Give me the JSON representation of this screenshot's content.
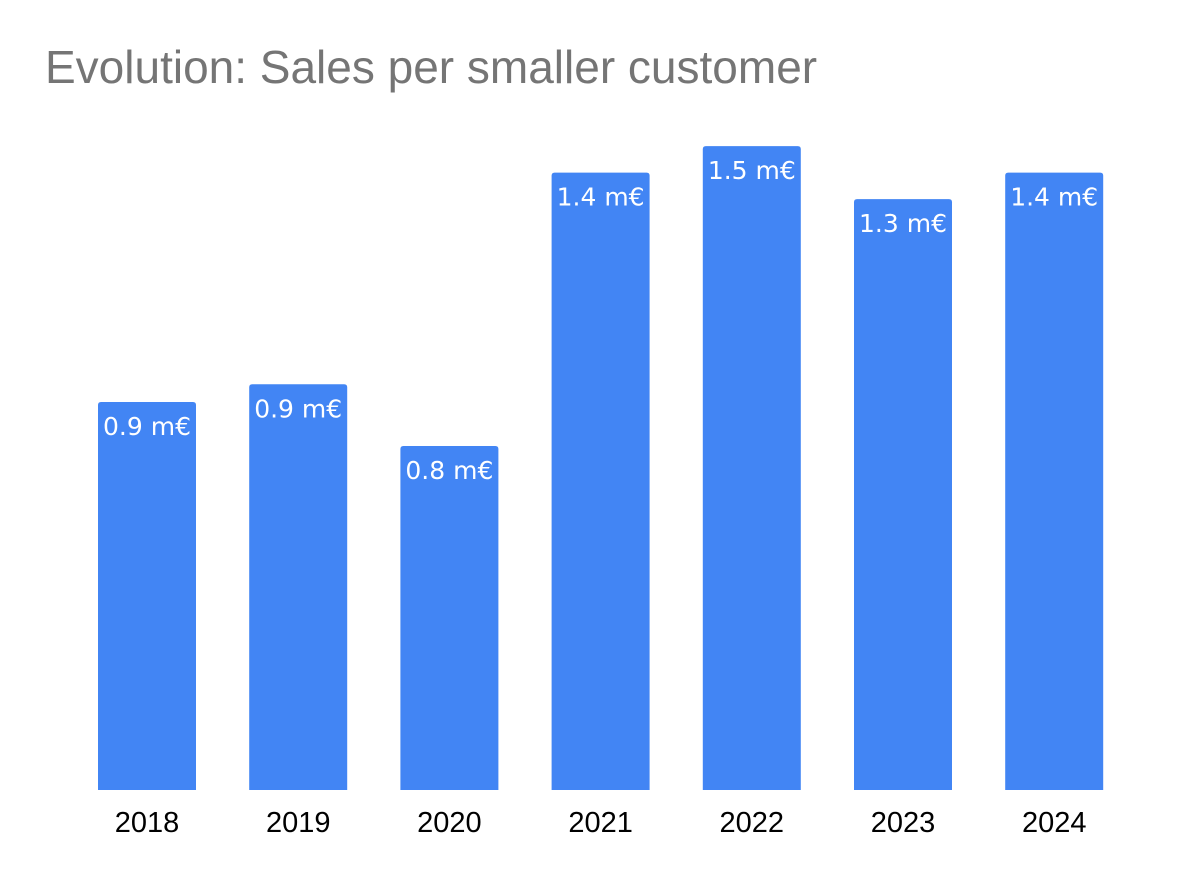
{
  "chart_data": {
    "type": "bar",
    "title": "Evolution: Sales per smaller customer",
    "categories": [
      "2018",
      "2019",
      "2020",
      "2021",
      "2022",
      "2023",
      "2024"
    ],
    "values": [
      0.88,
      0.92,
      0.78,
      1.4,
      1.46,
      1.34,
      1.4
    ],
    "data_labels": [
      "0.9 m€",
      "0.9 m€",
      "0.8 m€",
      "1.4 m€",
      "1.5 m€",
      "1.3 m€",
      "1.4 m€"
    ],
    "unit": "m€",
    "xlabel": "",
    "ylabel": "",
    "ylim": [
      0,
      1.5
    ],
    "grid": false,
    "legend": "none",
    "bar_color": "#4285f4"
  }
}
